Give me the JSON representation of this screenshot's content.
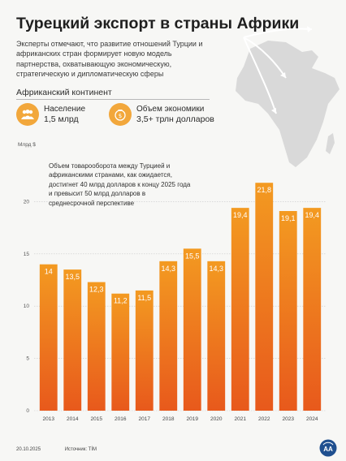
{
  "title": "Турецкий экспорт в страны Африки",
  "intro": "Эксперты отмечают, что развитие отношений Турции и африканских стран формирует новую модель партнерства, охватывающую экономическую, стратегическую и дипломатическую сферы",
  "continent_label": "Африканский континент",
  "stats": [
    {
      "label": "Население",
      "value": "1,5 млрд",
      "icon": "people-icon"
    },
    {
      "label": "Объем экономики",
      "value": "3,5+ трлн долларов",
      "icon": "money-bag-icon"
    }
  ],
  "note": "Объем товарооборота между Турцией и африканскими странами, как ожидается, достигнет 40 млрд долларов к концу 2025 года и превысит 50 млрд долларов в среднесрочной перспективе",
  "date": "20.10.2025",
  "source": "Источник: TİM",
  "logo": "AA",
  "colors": {
    "bar_top": "#f39a21",
    "bar_bottom": "#e8591c",
    "label": "#ffffff"
  },
  "chart_data": {
    "type": "bar",
    "ylabel": "Млрд $",
    "ylim": [
      0,
      25
    ],
    "yticks": [
      0,
      5,
      10,
      15,
      20
    ],
    "grid": true,
    "categories": [
      "2013",
      "2014",
      "2015",
      "2016",
      "2017",
      "2018",
      "2019",
      "2020",
      "2021",
      "2022",
      "2023",
      "2024"
    ],
    "values": [
      14,
      13.5,
      12.3,
      11.2,
      11.5,
      14.3,
      15.5,
      14.3,
      19.4,
      21.8,
      19.1,
      19.4
    ],
    "value_labels": [
      "14",
      "13,5",
      "12,3",
      "11,2",
      "11,5",
      "14,3",
      "15,5",
      "14,3",
      "19,4",
      "21,8",
      "19,1",
      "19,4"
    ]
  }
}
